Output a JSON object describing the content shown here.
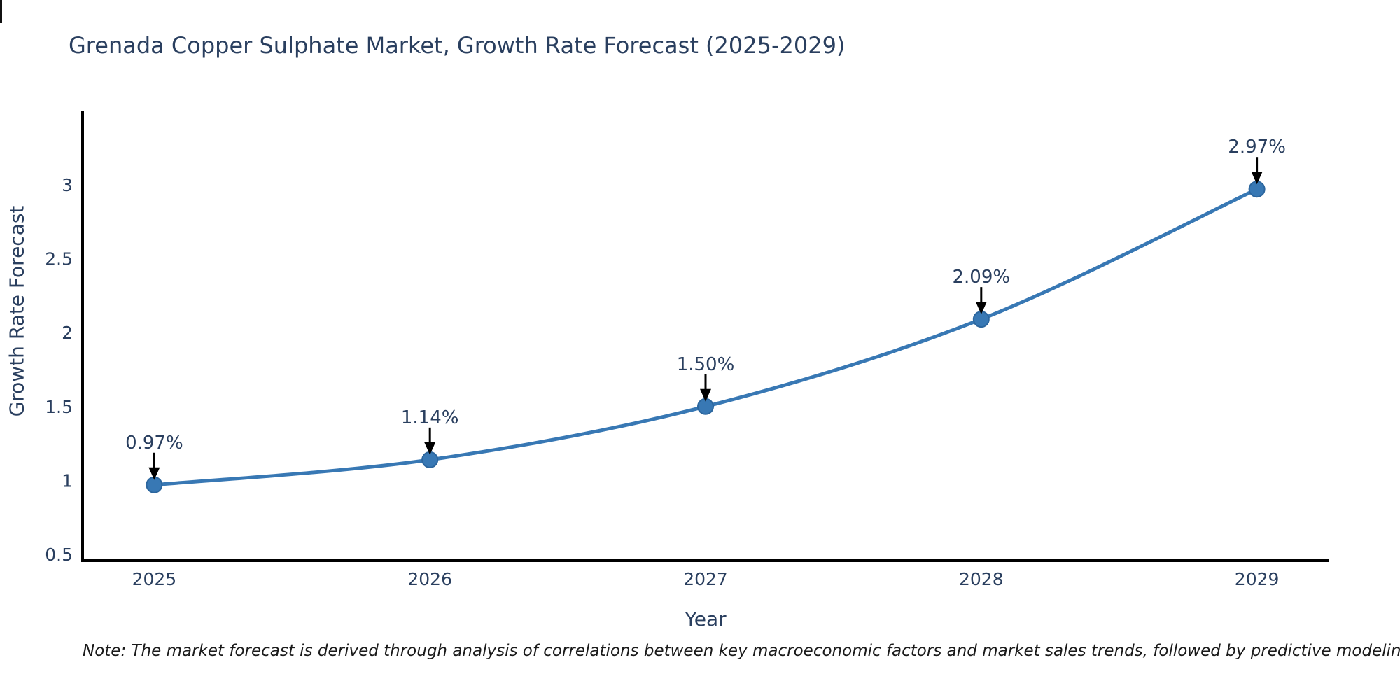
{
  "page": {
    "note": "Note: The market forecast is derived through analysis of correlations between key macroeconomic factors and market sales trends, followed by predictive modeling to project future sales"
  },
  "chart_data": {
    "type": "line",
    "title": "Grenada Copper Sulphate Market, Growth Rate Forecast (2025-2029)",
    "xlabel": "Year",
    "ylabel": "Growth Rate Forecast",
    "x": [
      2025,
      2026,
      2027,
      2028,
      2029
    ],
    "values": [
      0.97,
      1.14,
      1.5,
      2.09,
      2.97
    ],
    "point_labels": [
      "0.97%",
      "1.14%",
      "1.50%",
      "2.09%",
      "2.97%"
    ],
    "xtick_labels": [
      "2025",
      "2026",
      "2027",
      "2028",
      "2029"
    ],
    "yticks": [
      0.5,
      1,
      1.5,
      2,
      2.5,
      3
    ],
    "ytick_labels": [
      "0.5",
      "1",
      "1.5",
      "2",
      "2.5",
      "3"
    ],
    "xlim": [
      2024.74,
      2029.26
    ],
    "ylim": [
      0.453,
      3.501
    ],
    "grid": false,
    "legend": "none",
    "line_shape": "spline",
    "colors": {
      "line": "#3878b4",
      "marker": "#3878b4",
      "marker_edge": "#2c669e",
      "arrow": "#000000",
      "text": "#2a3f5f",
      "axis": "#000000",
      "background": "#ffffff"
    }
  }
}
